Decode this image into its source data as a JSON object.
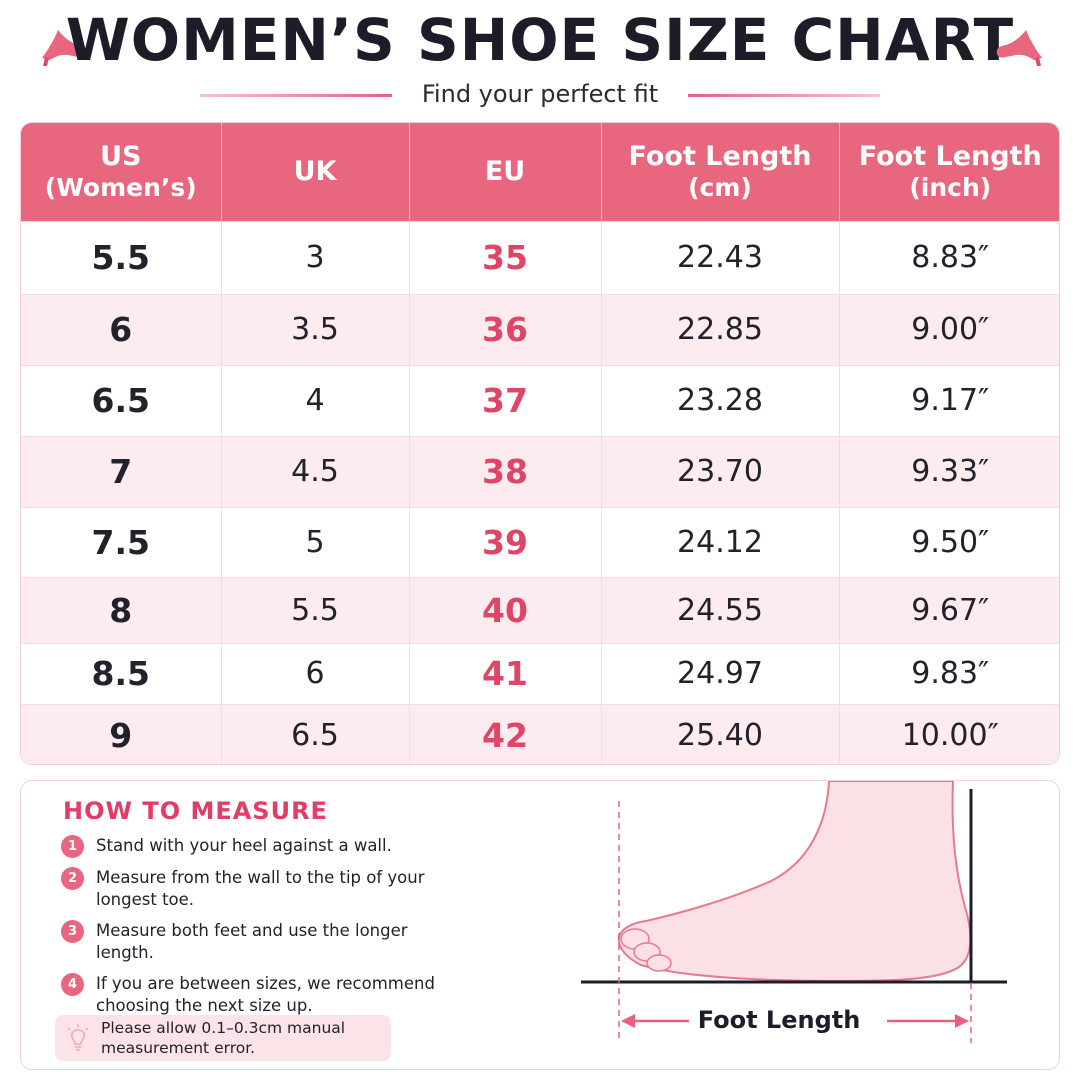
{
  "header": {
    "title": "WOMEN’S SHOE SIZE CHART",
    "subtitle": "Find your perfect fit"
  },
  "table": {
    "columns": [
      {
        "line1": "US",
        "line2": "(Women’s)"
      },
      {
        "line1": "UK",
        "line2": ""
      },
      {
        "line1": "EU",
        "line2": ""
      },
      {
        "line1": "Foot Length",
        "line2": "(cm)"
      },
      {
        "line1": "Foot Length",
        "line2": "(inch)"
      }
    ],
    "rows": [
      {
        "us": "5.5",
        "uk": "3",
        "eu": "35",
        "cm": "22.43",
        "inch": "8.83″"
      },
      {
        "us": "6",
        "uk": "3.5",
        "eu": "36",
        "cm": "22.85",
        "inch": "9.00″"
      },
      {
        "us": "6.5",
        "uk": "4",
        "eu": "37",
        "cm": "23.28",
        "inch": "9.17″"
      },
      {
        "us": "7",
        "uk": "4.5",
        "eu": "38",
        "cm": "23.70",
        "inch": "9.33″"
      },
      {
        "us": "7.5",
        "uk": "5",
        "eu": "39",
        "cm": "24.12",
        "inch": "9.50″"
      },
      {
        "us": "8",
        "uk": "5.5",
        "eu": "40",
        "cm": "24.55",
        "inch": "9.67″"
      },
      {
        "us": "8.5",
        "uk": "6",
        "eu": "41",
        "cm": "24.97",
        "inch": "9.83″"
      },
      {
        "us": "9",
        "uk": "6.5",
        "eu": "42",
        "cm": "25.40",
        "inch": "10.00″"
      }
    ]
  },
  "measure": {
    "title": "HOW TO MEASURE",
    "steps": [
      {
        "num": "1",
        "text": "Stand with your heel against a wall."
      },
      {
        "num": "2",
        "text": "Measure from the wall to the tip of your longest toe."
      },
      {
        "num": "3",
        "text": "Measure both feet and use the longer length."
      },
      {
        "num": "4",
        "text": "If you are between sizes, we recommend choosing the next size up."
      }
    ],
    "note": "Please allow 0.1–0.3cm manual measurement error.",
    "diagram_label": "Foot Length"
  },
  "icons": {
    "heel": "high-heel-icon",
    "bulb": "lightbulb-icon"
  },
  "colors": {
    "accent": "#e8677f",
    "eu_text": "#e04466",
    "row_alt": "#fdecef",
    "title": "#1d1d29"
  }
}
